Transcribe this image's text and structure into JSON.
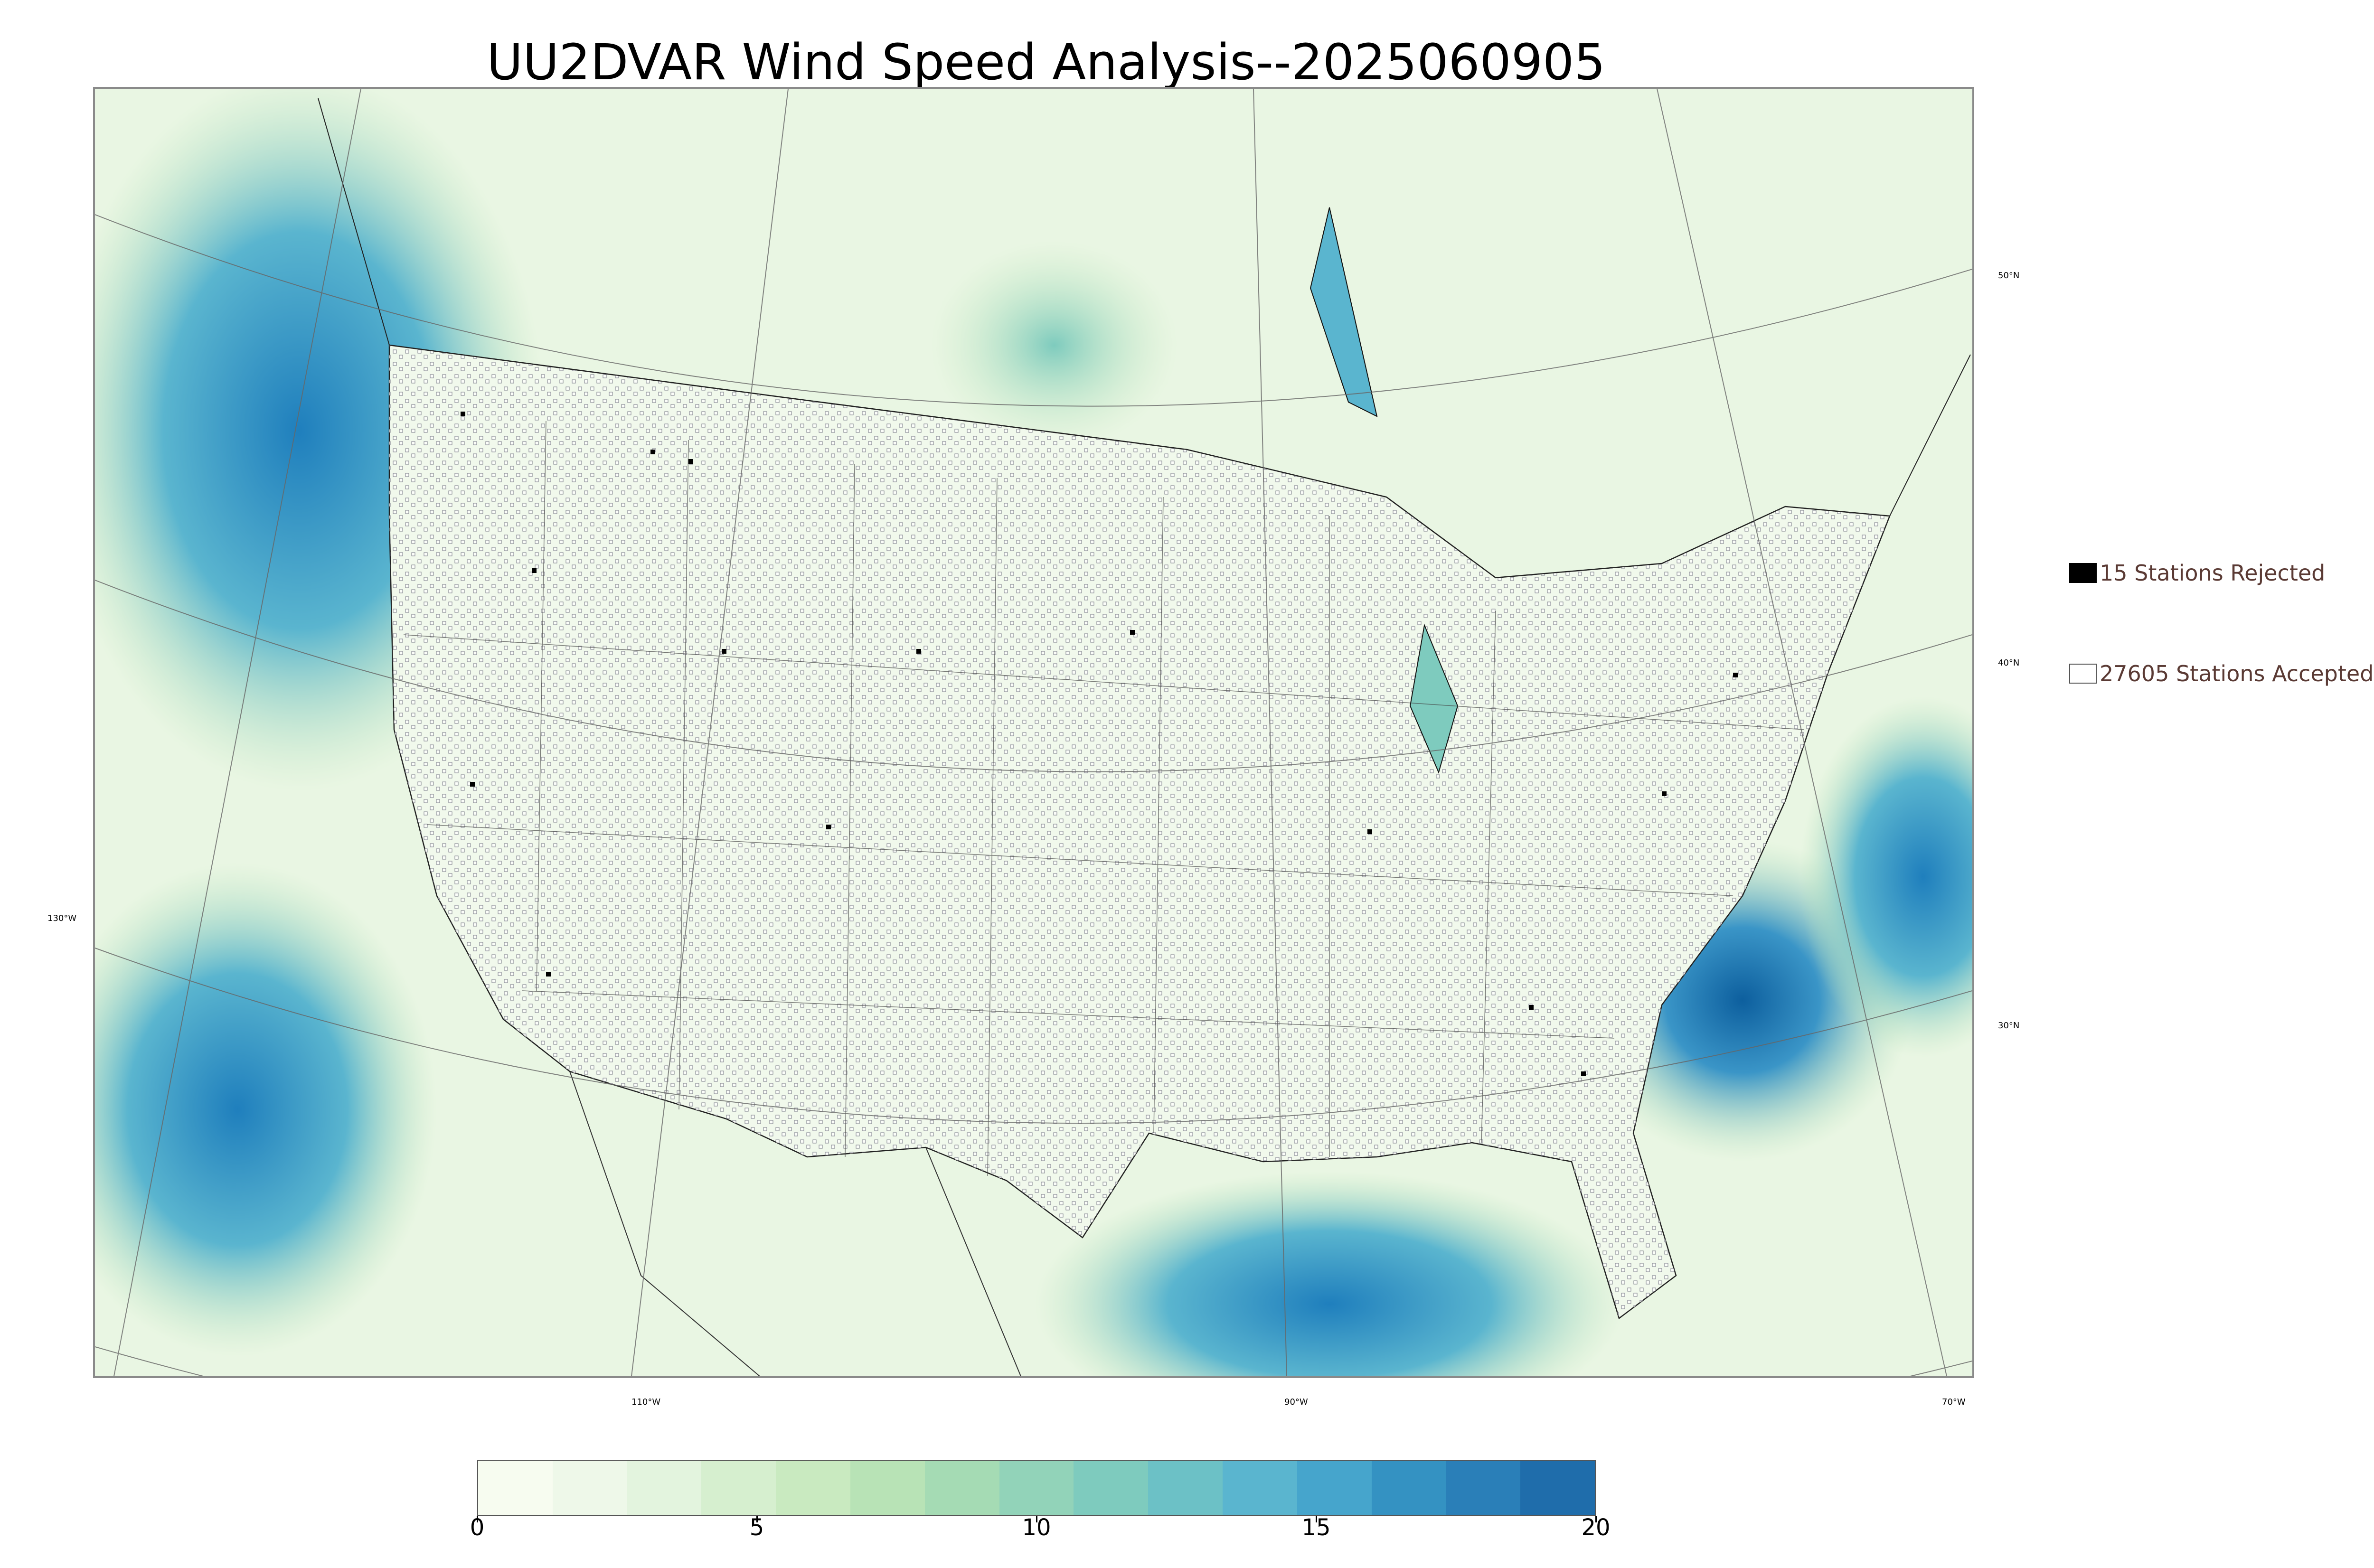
{
  "title": "UU2DVAR Wind Speed Analysis--2025060905",
  "map": {
    "type": "wind-speed-analysis-map",
    "region": "CONUS",
    "colormap": "GnBu",
    "colors": {
      "low": "#f7fcf0",
      "mid": "#a8ddb5",
      "high": "#0868ac",
      "coastline": "#000000",
      "graticule": "#555555",
      "station_accepted_fill": "#ffffff",
      "station_accepted_edge": "#555555",
      "station_rejected": "#000000"
    }
  },
  "legend": {
    "rejected": {
      "label": "15 Stations Rejected",
      "icon": "filled-black-square"
    },
    "accepted": {
      "label": "27605 Stations Accepted",
      "icon": "hollow-square"
    }
  },
  "graticule": {
    "lat_labels": [
      "50°N",
      "40°N",
      "30°N"
    ],
    "lon_labels": [
      "130°W",
      "110°W",
      "90°W",
      "70°W"
    ]
  },
  "colorbar": {
    "min": 0,
    "max": 20,
    "ticks": [
      "0",
      "5",
      "10",
      "15",
      "20"
    ],
    "colors": [
      "#f7fcf0",
      "#eef8e9",
      "#e3f4de",
      "#d6efcf",
      "#c9eac0",
      "#b8e3b6",
      "#a5dbb4",
      "#92d3b9",
      "#7ecbbe",
      "#6cc1c6",
      "#5ab5cf",
      "#46a5cc",
      "#3492c2",
      "#2a7fb8",
      "#1f6dab"
    ]
  }
}
